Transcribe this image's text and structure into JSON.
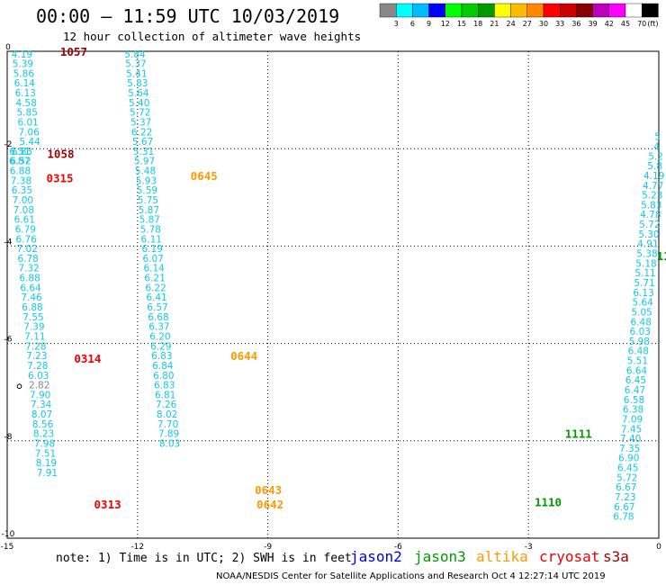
{
  "header": {
    "title": "00:00 – 11:59 UTC 10/03/2019",
    "subtitle": "12 hour collection of altimeter wave heights"
  },
  "colorbar": {
    "colors": [
      "#888888",
      "#00ffff",
      "#00bbff",
      "#0000ff",
      "#00ff00",
      "#00cc00",
      "#009900",
      "#ffff00",
      "#ffbb00",
      "#ff8800",
      "#ff0000",
      "#cc0000",
      "#880000",
      "#bb00bb",
      "#ff00ff",
      "#ffffff",
      "#000000"
    ],
    "labels": [
      "3",
      "6",
      "9",
      "12",
      "15",
      "18",
      "21",
      "24",
      "27",
      "30",
      "33",
      "36",
      "39",
      "42",
      "45",
      "70"
    ],
    "unit": "(ft)"
  },
  "footer": {
    "note": "note:  1) Time is in UTC; 2) SWH is in feet",
    "legend": [
      {
        "name": "jason2",
        "color": "#0000dd"
      },
      {
        "name": "jason3",
        "color": "#009900"
      },
      {
        "name": "altika",
        "color": "#ff9900"
      },
      {
        "name": "cryosat",
        "color": "#ee0000"
      },
      {
        "name": "s3a",
        "color": "#990000"
      }
    ],
    "credit": "NOAA/NESDIS Center for Satellite Applications and Research    Oct  4 12:27:14 UTC 2019"
  },
  "chart_data": {
    "type": "scatter",
    "title": "00:00 – 11:59 UTC 10/03/2019",
    "subtitle": "12 hour collection of altimeter wave heights",
    "xlim": [
      -15,
      0
    ],
    "ylim": [
      -10,
      0
    ],
    "xticks": [
      "-15",
      "-12",
      "-9",
      "-6",
      "-3",
      "0"
    ],
    "yticks": [
      "0",
      "-2",
      "-4",
      "-6",
      "-8",
      "-10"
    ],
    "grid": true,
    "value_colors": {
      "gray": "#888888",
      "cyan": "#11c8e8"
    },
    "tracks": [
      {
        "points": [
          [
            -14.66,
            -0.06,
            "4.19"
          ],
          [
            -14.64,
            -0.25,
            "5.39"
          ],
          [
            -14.62,
            -0.45,
            "5.86"
          ],
          [
            -14.6,
            -0.65,
            "6.14"
          ],
          [
            -14.58,
            -0.85,
            "6.13"
          ],
          [
            -14.56,
            -1.05,
            "4.58"
          ],
          [
            -14.54,
            -1.25,
            "5.85"
          ],
          [
            -14.52,
            -1.45,
            "6.01"
          ],
          [
            -14.5,
            -1.65,
            "7.06"
          ],
          [
            -14.48,
            -1.85,
            "5.44"
          ],
          [
            -14.66,
            -2.05,
            "6.83"
          ],
          [
            -14.71,
            -2.05,
            "6.51"
          ],
          [
            -14.69,
            -2.25,
            "6.52"
          ],
          [
            -14.72,
            -2.25,
            "6.87"
          ],
          [
            -14.7,
            -2.45,
            "6.88"
          ],
          [
            -14.68,
            -2.65,
            "7.38"
          ],
          [
            -14.66,
            -2.85,
            "6.35"
          ],
          [
            -14.64,
            -3.05,
            "7.00"
          ],
          [
            -14.62,
            -3.25,
            "7.08"
          ],
          [
            -14.6,
            -3.45,
            "6.61"
          ],
          [
            -14.58,
            -3.65,
            "6.79"
          ],
          [
            -14.56,
            -3.85,
            "6.76"
          ],
          [
            -14.54,
            -4.05,
            "7.02"
          ],
          [
            -14.52,
            -4.25,
            "6.78"
          ],
          [
            -14.5,
            -4.45,
            "7.32"
          ],
          [
            -14.48,
            -4.65,
            "6.88"
          ],
          [
            -14.46,
            -4.85,
            "6.64"
          ],
          [
            -14.44,
            -5.05,
            "7.46"
          ],
          [
            -14.42,
            -5.25,
            "6.88"
          ],
          [
            -14.4,
            -5.45,
            "7.55"
          ],
          [
            -14.38,
            -5.65,
            "7.39"
          ],
          [
            -14.36,
            -5.85,
            "7.11"
          ],
          [
            -14.34,
            -6.05,
            "7.28"
          ],
          [
            -14.32,
            -6.25,
            "7.23"
          ],
          [
            -14.3,
            -6.45,
            "7.28"
          ],
          [
            -14.28,
            -6.65,
            "6.03"
          ],
          [
            -14.26,
            -6.85,
            "2.82",
            "gray"
          ],
          [
            -14.24,
            -7.05,
            "7.90"
          ],
          [
            -14.22,
            -7.25,
            "7.34"
          ],
          [
            -14.2,
            -7.45,
            "8.07"
          ],
          [
            -14.18,
            -7.65,
            "8.56"
          ],
          [
            -14.16,
            -7.85,
            "8.23"
          ],
          [
            -14.14,
            -8.05,
            "7.98"
          ],
          [
            -14.12,
            -8.25,
            "7.51"
          ],
          [
            -14.1,
            -8.45,
            "8.19"
          ],
          [
            -14.08,
            -8.65,
            "7.91"
          ]
        ]
      },
      {
        "points": [
          [
            -12.06,
            -0.06,
            "5.84"
          ],
          [
            -12.04,
            -0.25,
            "5.37"
          ],
          [
            -12.02,
            -0.45,
            "5.41"
          ],
          [
            -12.0,
            -0.65,
            "5.83"
          ],
          [
            -11.98,
            -0.85,
            "5.64"
          ],
          [
            -11.96,
            -1.05,
            "5.40"
          ],
          [
            -11.94,
            -1.25,
            "5.72"
          ],
          [
            -11.92,
            -1.45,
            "5.37"
          ],
          [
            -11.9,
            -1.65,
            "6.22"
          ],
          [
            -11.88,
            -1.85,
            "5.67"
          ],
          [
            -11.86,
            -2.05,
            "5.31"
          ],
          [
            -11.84,
            -2.25,
            "5.97"
          ],
          [
            -11.82,
            -2.45,
            "5.48"
          ],
          [
            -11.8,
            -2.65,
            "5.93"
          ],
          [
            -11.78,
            -2.85,
            "5.59"
          ],
          [
            -11.76,
            -3.05,
            "5.75"
          ],
          [
            -11.74,
            -3.25,
            "5.87"
          ],
          [
            -11.72,
            -3.45,
            "5.87"
          ],
          [
            -11.7,
            -3.65,
            "5.78"
          ],
          [
            -11.68,
            -3.85,
            "6.11"
          ],
          [
            -11.66,
            -4.05,
            "6.19"
          ],
          [
            -11.64,
            -4.25,
            "6.07"
          ],
          [
            -11.62,
            -4.45,
            "6.14"
          ],
          [
            -11.6,
            -4.65,
            "6.21"
          ],
          [
            -11.58,
            -4.85,
            "6.22"
          ],
          [
            -11.56,
            -5.05,
            "6.41"
          ],
          [
            -11.54,
            -5.25,
            "6.57"
          ],
          [
            -11.52,
            -5.45,
            "6.68"
          ],
          [
            -11.5,
            -5.65,
            "6.37"
          ],
          [
            -11.48,
            -5.85,
            "6.20"
          ],
          [
            -11.46,
            -6.05,
            "6.29"
          ],
          [
            -11.44,
            -6.25,
            "6.83"
          ],
          [
            -11.42,
            -6.45,
            "6.84"
          ],
          [
            -11.4,
            -6.65,
            "6.80"
          ],
          [
            -11.38,
            -6.85,
            "6.83"
          ],
          [
            -11.36,
            -7.05,
            "6.81"
          ],
          [
            -11.34,
            -7.25,
            "7.26"
          ],
          [
            -11.32,
            -7.45,
            "8.02"
          ],
          [
            -11.3,
            -7.65,
            "7.70"
          ],
          [
            -11.28,
            -7.85,
            "7.89"
          ],
          [
            -11.26,
            -8.05,
            "8.03"
          ]
        ]
      },
      {
        "points": [
          [
            -0.03,
            -1.75,
            "5"
          ],
          [
            -0.05,
            -1.95,
            "4"
          ],
          [
            -0.07,
            -2.15,
            "5.2"
          ],
          [
            -0.09,
            -2.35,
            "5.8"
          ],
          [
            -0.11,
            -2.55,
            "4.19"
          ],
          [
            -0.13,
            -2.75,
            "4.77"
          ],
          [
            -0.15,
            -2.95,
            "5.23"
          ],
          [
            -0.17,
            -3.15,
            "5.83"
          ],
          [
            -0.19,
            -3.35,
            "4.78"
          ],
          [
            -0.21,
            -3.55,
            "5.72"
          ],
          [
            -0.23,
            -3.75,
            "5.30"
          ],
          [
            -0.25,
            -3.95,
            "4.91"
          ],
          [
            -0.27,
            -4.15,
            "5.38"
          ],
          [
            -0.29,
            -4.35,
            "5.18"
          ],
          [
            -0.31,
            -4.55,
            "5.11"
          ],
          [
            -0.33,
            -4.75,
            "5.71"
          ],
          [
            -0.35,
            -4.95,
            "6.13"
          ],
          [
            -0.37,
            -5.15,
            "5.64"
          ],
          [
            -0.39,
            -5.35,
            "5.05"
          ],
          [
            -0.41,
            -5.55,
            "6.48"
          ],
          [
            -0.43,
            -5.75,
            "6.03"
          ],
          [
            -0.45,
            -5.95,
            "5.98"
          ],
          [
            -0.47,
            -6.15,
            "6.48"
          ],
          [
            -0.49,
            -6.35,
            "5.51"
          ],
          [
            -0.51,
            -6.55,
            "6.64"
          ],
          [
            -0.53,
            -6.75,
            "6.45"
          ],
          [
            -0.55,
            -6.95,
            "6.47"
          ],
          [
            -0.57,
            -7.15,
            "6.58"
          ],
          [
            -0.59,
            -7.35,
            "6.38"
          ],
          [
            -0.61,
            -7.55,
            "7.09"
          ],
          [
            -0.63,
            -7.75,
            "7.45"
          ],
          [
            -0.65,
            -7.95,
            "7.40"
          ],
          [
            -0.67,
            -8.15,
            "7.35"
          ],
          [
            -0.69,
            -8.35,
            "6.90"
          ],
          [
            -0.71,
            -8.55,
            "6.45"
          ],
          [
            -0.73,
            -8.75,
            "5.72"
          ],
          [
            -0.75,
            -8.95,
            "6.67"
          ],
          [
            -0.77,
            -9.15,
            "7.23"
          ],
          [
            -0.79,
            -9.35,
            "6.67"
          ],
          [
            -0.81,
            -9.55,
            "6.78"
          ]
        ]
      }
    ],
    "time_labels": [
      {
        "text": "1057",
        "x": -13.78,
        "y": 0.0,
        "satellite": "s3a"
      },
      {
        "text": "1058",
        "x": -14.08,
        "y": -2.1,
        "satellite": "s3a"
      },
      {
        "text": "0315",
        "x": -14.1,
        "y": -2.6,
        "satellite": "cryosat"
      },
      {
        "text": "0645",
        "x": -10.78,
        "y": -2.55,
        "satellite": "altika"
      },
      {
        "text": "0314",
        "x": -13.46,
        "y": -6.3,
        "satellite": "cryosat"
      },
      {
        "text": "0644",
        "x": -9.86,
        "y": -6.25,
        "satellite": "altika"
      },
      {
        "text": "0643",
        "x": -9.3,
        "y": -9.0,
        "satellite": "altika"
      },
      {
        "text": "0642",
        "x": -9.26,
        "y": -9.3,
        "satellite": "altika"
      },
      {
        "text": "0313",
        "x": -13.0,
        "y": -9.3,
        "satellite": "cryosat"
      },
      {
        "text": "11",
        "x": -0.05,
        "y": -4.2,
        "satellite": "jason3"
      },
      {
        "text": "1111",
        "x": -2.16,
        "y": -7.85,
        "satellite": "jason3"
      },
      {
        "text": "1110",
        "x": -2.86,
        "y": -9.25,
        "satellite": "jason3"
      }
    ]
  }
}
